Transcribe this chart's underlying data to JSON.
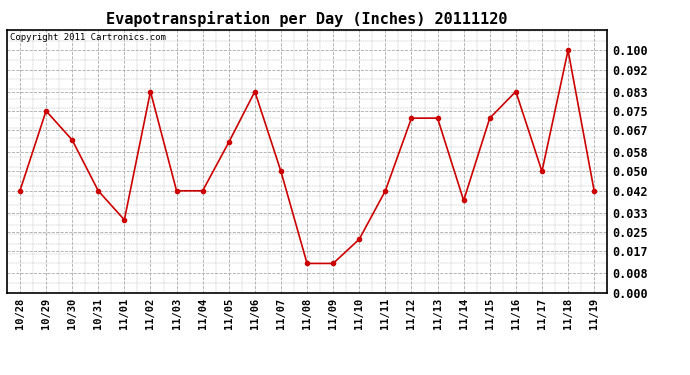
{
  "title": "Evapotranspiration per Day (Inches) 20111120",
  "copyright_text": "Copyright 2011 Cartronics.com",
  "x_labels": [
    "10/28",
    "10/29",
    "10/30",
    "10/31",
    "11/01",
    "11/02",
    "11/03",
    "11/04",
    "11/05",
    "11/06",
    "11/07",
    "11/08",
    "11/09",
    "11/10",
    "11/11",
    "11/12",
    "11/13",
    "11/14",
    "11/15",
    "11/16",
    "11/17",
    "11/18",
    "11/19"
  ],
  "y_values": [
    0.042,
    0.075,
    0.063,
    0.042,
    0.03,
    0.083,
    0.042,
    0.042,
    0.062,
    0.083,
    0.05,
    0.012,
    0.012,
    0.022,
    0.042,
    0.072,
    0.072,
    0.038,
    0.072,
    0.083,
    0.05,
    0.1,
    0.042
  ],
  "line_color": "#cc0000",
  "marker": "o",
  "marker_size": 3,
  "marker_color": "#cc0000",
  "ylim": [
    0.0,
    0.1084
  ],
  "yticks": [
    0.0,
    0.008,
    0.017,
    0.025,
    0.033,
    0.042,
    0.05,
    0.058,
    0.067,
    0.075,
    0.083,
    0.092,
    0.1
  ],
  "background_color": "#ffffff",
  "grid_color": "#aaaaaa",
  "title_fontsize": 11,
  "copyright_fontsize": 6.5,
  "tick_fontsize": 7.5,
  "ytick_fontsize": 8.5
}
